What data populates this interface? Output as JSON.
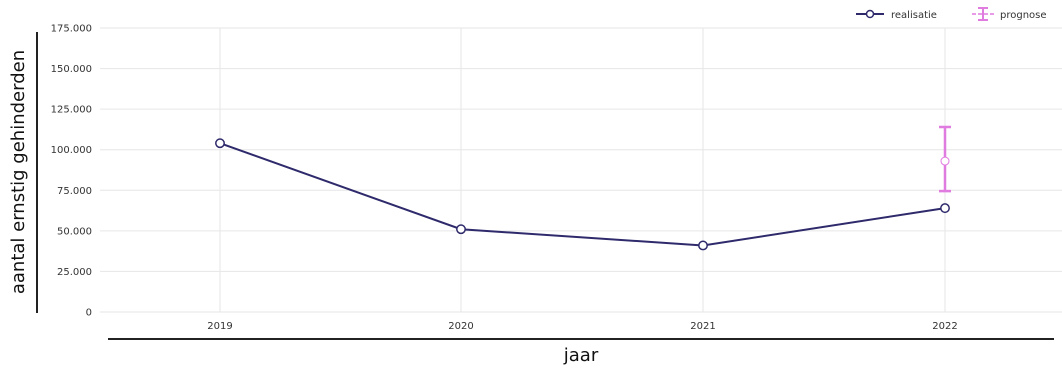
{
  "chart_data": {
    "type": "line",
    "title": "",
    "xlabel": "jaar",
    "ylabel": "aantal ernstig gehinderden",
    "categories": [
      "2019",
      "2020",
      "2021",
      "2022"
    ],
    "y_ticks": [
      "0",
      "25.000",
      "50.000",
      "75.000",
      "100.000",
      "125.000",
      "150.000",
      "175.000"
    ],
    "ylim": [
      0,
      175000
    ],
    "grid": true,
    "legend_position": "top-right",
    "series": [
      {
        "name": "realisatie",
        "color": "#2e2a6b",
        "marker": "open-circle",
        "values": [
          104000,
          51000,
          41000,
          64000
        ]
      },
      {
        "name": "prognose",
        "color": "#e07be0",
        "marker": "errorbar",
        "points": [
          {
            "x": "2022",
            "y": 93000,
            "low": 74500,
            "high": 114000
          }
        ]
      }
    ]
  }
}
